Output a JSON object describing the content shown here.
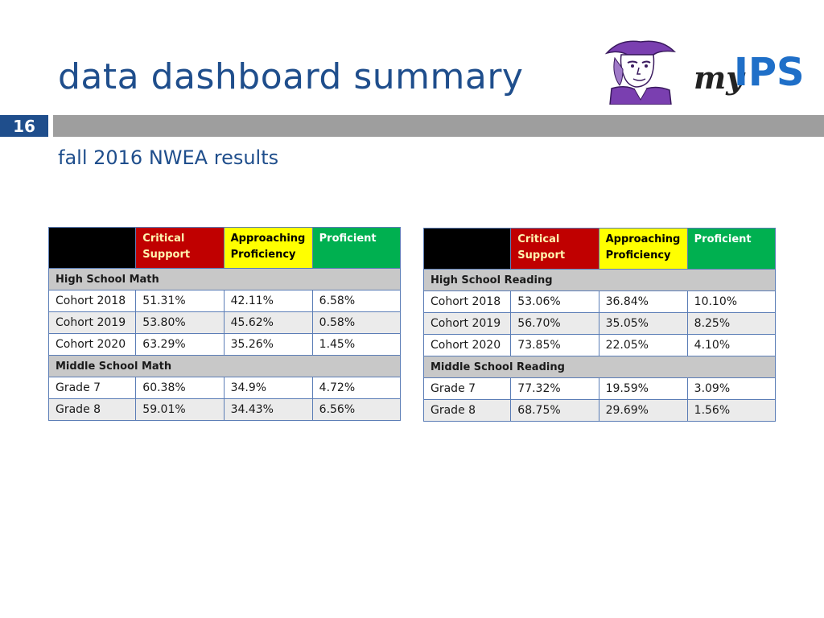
{
  "header": {
    "title": "data dashboard summary",
    "slide_number": "16",
    "subtitle": "fall 2016 NWEA results"
  },
  "logos": {
    "mascot": "school-mascot-logo",
    "brand": "myIPS"
  },
  "colors": {
    "title": "#1f4e8c",
    "critical": "#c00000",
    "approaching": "#ffff00",
    "proficient": "#00b050",
    "section": "#c8c8c8",
    "border": "#5b7db6"
  },
  "columns": {
    "critical": "Critical Support",
    "approaching": "Approaching Proficiency",
    "proficient": "Proficient"
  },
  "math_table": {
    "sections": [
      {
        "title": "High School Math",
        "rows": [
          {
            "label": "Cohort 2018",
            "values": [
              "51.31%",
              "42.11%",
              "6.58%"
            ]
          },
          {
            "label": "Cohort 2019",
            "values": [
              "53.80%",
              "45.62%",
              "0.58%"
            ]
          },
          {
            "label": "Cohort 2020",
            "values": [
              "63.29%",
              "35.26%",
              "1.45%"
            ]
          }
        ]
      },
      {
        "title": "Middle School Math",
        "rows": [
          {
            "label": "Grade 7",
            "values": [
              "60.38%",
              "34.9%",
              "4.72%"
            ]
          },
          {
            "label": "Grade 8",
            "values": [
              "59.01%",
              "34.43%",
              "6.56%"
            ]
          }
        ]
      }
    ]
  },
  "reading_table": {
    "sections": [
      {
        "title": "High School Reading",
        "rows": [
          {
            "label": "Cohort 2018",
            "values": [
              "53.06%",
              "36.84%",
              "10.10%"
            ]
          },
          {
            "label": "Cohort 2019",
            "values": [
              "56.70%",
              "35.05%",
              "8.25%"
            ]
          },
          {
            "label": "Cohort 2020",
            "values": [
              "73.85%",
              "22.05%",
              "4.10%"
            ]
          }
        ]
      },
      {
        "title": "Middle School Reading",
        "rows": [
          {
            "label": "Grade 7",
            "values": [
              "77.32%",
              "19.59%",
              "3.09%"
            ]
          },
          {
            "label": "Grade 8",
            "values": [
              "68.75%",
              "29.69%",
              "1.56%"
            ]
          }
        ]
      }
    ]
  }
}
